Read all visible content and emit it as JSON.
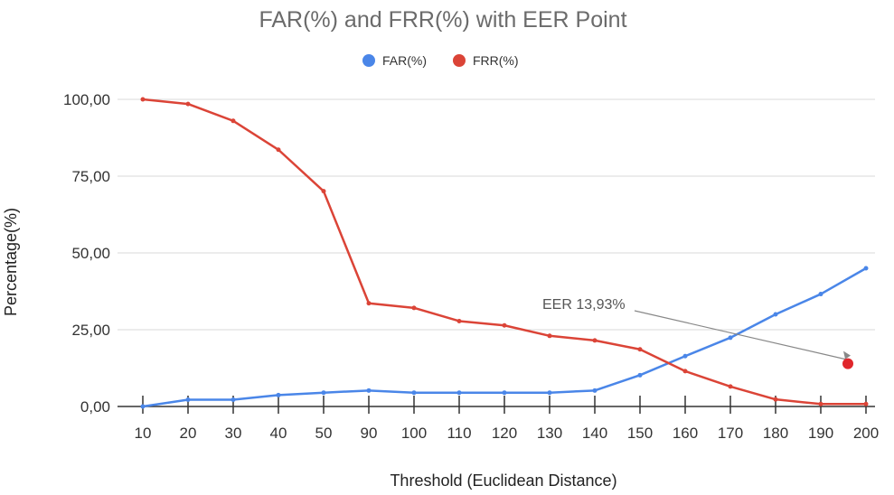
{
  "chart_data": {
    "type": "line",
    "title": "FAR(%) and FRR(%) with EER Point",
    "xlabel": "Threshold (Euclidean Distance)",
    "ylabel": "Percentage(%)",
    "categories": [
      "10",
      "20",
      "30",
      "40",
      "50",
      "90",
      "100",
      "110",
      "120",
      "130",
      "140",
      "150",
      "160",
      "170",
      "180",
      "190",
      "200"
    ],
    "ylim": [
      0,
      100
    ],
    "yticks": [
      "0,00",
      "25,00",
      "50,00",
      "75,00",
      "100,00"
    ],
    "grid": true,
    "legend": "top",
    "series": [
      {
        "name": "FAR(%)",
        "color": "#4a86e8",
        "values": [
          0,
          2.2,
          2.2,
          3.7,
          4.5,
          5.2,
          4.5,
          4.5,
          4.5,
          4.5,
          5.2,
          10.2,
          16.4,
          22.4,
          30.0,
          36.6,
          45.0
        ]
      },
      {
        "name": "FRR(%)",
        "color": "#db4437",
        "values": [
          100,
          98.5,
          93.0,
          83.6,
          70.1,
          33.6,
          32.1,
          27.8,
          26.4,
          23.0,
          21.5,
          18.6,
          11.5,
          6.5,
          2.3,
          0.8,
          0.8
        ]
      }
    ],
    "eer": {
      "label": "EER 13,93%",
      "value": 13.93,
      "x_category_pos": 15.6,
      "color": "#e0262b"
    }
  }
}
